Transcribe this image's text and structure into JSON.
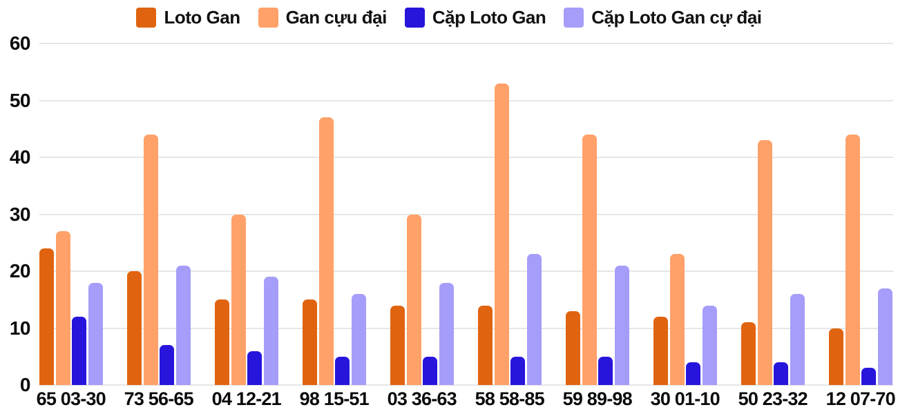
{
  "chart_data": {
    "type": "bar",
    "title": "",
    "xlabel": "",
    "ylabel": "",
    "categories": [
      "65 03-30",
      "73 56-65",
      "04 12-21",
      "98 15-51",
      "03 36-63",
      "58 58-85",
      "59 89-98",
      "30 01-10",
      "50 23-32",
      "12 07-70"
    ],
    "series": [
      {
        "name": "Loto Gan",
        "color": "#e0640f",
        "values": [
          24,
          20,
          15,
          15,
          14,
          14,
          13,
          12,
          11,
          10
        ]
      },
      {
        "name": "Gan cựu đại",
        "color": "#ffa169",
        "values": [
          27,
          44,
          30,
          47,
          30,
          53,
          44,
          23,
          43,
          44
        ]
      },
      {
        "name": "Cặp Loto Gan",
        "color": "#2715dc",
        "values": [
          12,
          7,
          6,
          5,
          5,
          5,
          5,
          4,
          4,
          3
        ]
      },
      {
        "name": "Cặp Loto Gan cự đại",
        "color": "#a59df9",
        "values": [
          18,
          21,
          19,
          16,
          18,
          23,
          21,
          14,
          16,
          17
        ]
      }
    ],
    "ylim": [
      0,
      60
    ],
    "y_ticks": [
      0,
      10,
      20,
      30,
      40,
      50,
      60
    ],
    "grid": true,
    "legend_position": "top",
    "colors": {
      "background": "#ffffff",
      "gridline": "#e6e6e6",
      "text": "#0b0b0b"
    }
  }
}
